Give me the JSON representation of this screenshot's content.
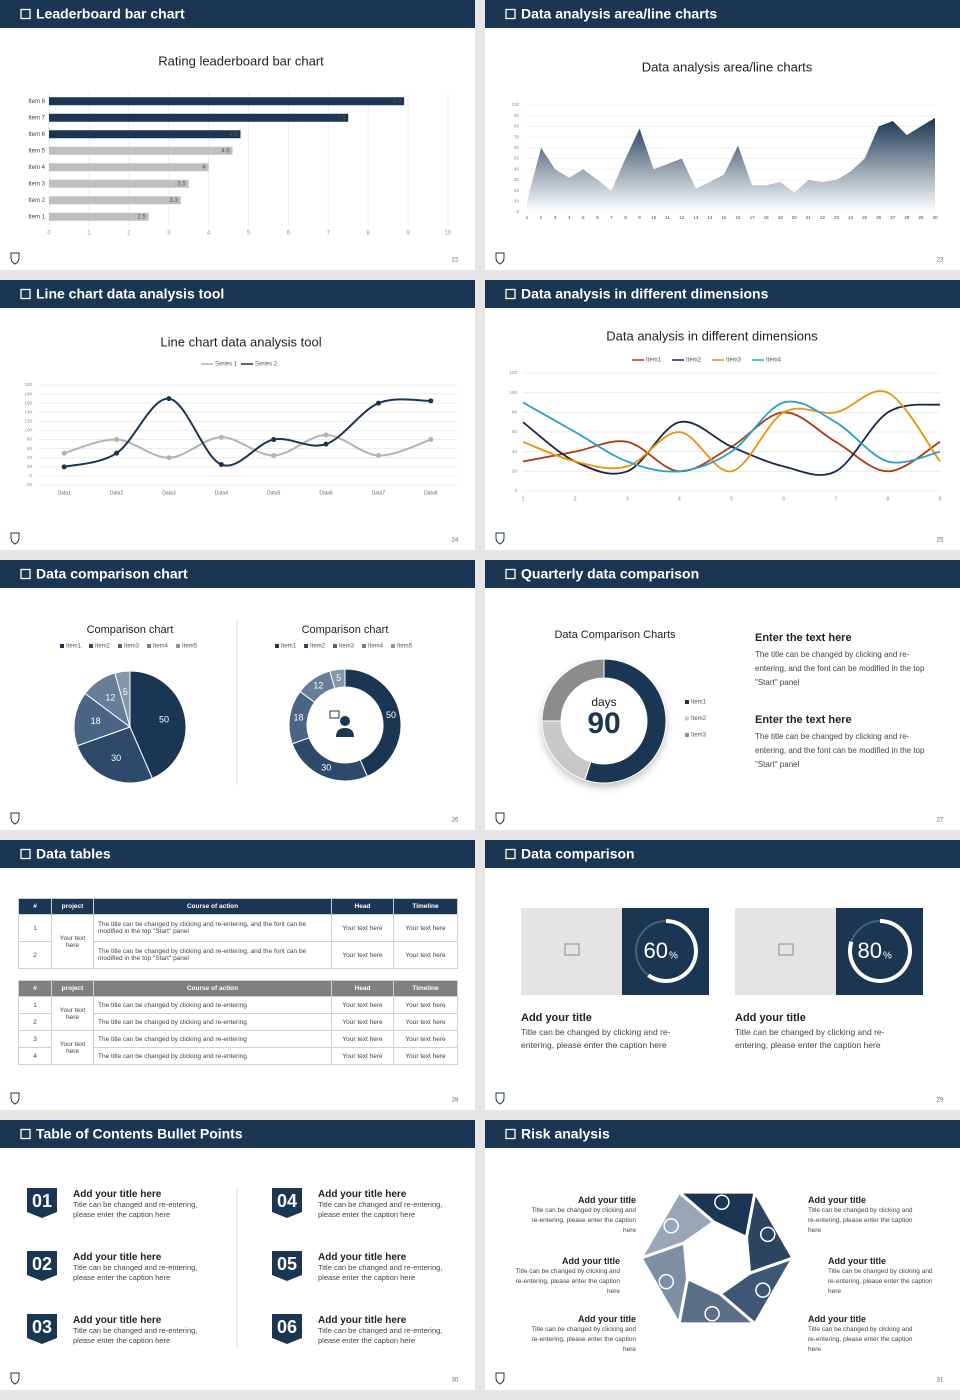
{
  "slides": [
    {
      "title": "Leaderboard bar chart",
      "page": 22
    },
    {
      "title": "Data analysis area/line charts",
      "page": 23
    },
    {
      "title": "Line chart data analysis tool",
      "page": 24
    },
    {
      "title": "Data analysis in different dimensions",
      "page": 25
    },
    {
      "title": "Data comparison chart",
      "page": 26
    },
    {
      "title": "Quarterly data comparison",
      "page": 27
    },
    {
      "title": "Data tables",
      "page": 28
    },
    {
      "title": "Data comparison",
      "page": 29
    },
    {
      "title": "Table of Contents Bullet Points",
      "page": 30
    },
    {
      "title": "Risk analysis",
      "page": 31
    }
  ],
  "chart_data": [
    {
      "type": "bar",
      "orientation": "horizontal",
      "title": "Rating leaderboard bar chart",
      "categories": [
        "Item 1",
        "Item 2",
        "Item 3",
        "Item 4",
        "Item 5",
        "Item 6",
        "Item 7",
        "Item 8"
      ],
      "values": [
        2.5,
        3.3,
        3.5,
        4,
        4.6,
        4.8,
        7.5,
        8.9
      ],
      "colors": [
        "#bfbfbf",
        "#bfbfbf",
        "#bfbfbf",
        "#bfbfbf",
        "#bfbfbf",
        "#1b3652",
        "#1b3652",
        "#1b3652"
      ],
      "xlim": [
        0,
        10
      ],
      "xticks": [
        0,
        1,
        2,
        3,
        4,
        5,
        6,
        7,
        8,
        9,
        10
      ],
      "grid": true
    },
    {
      "type": "area",
      "title": "Data analysis area/line charts",
      "x": [
        1,
        2,
        3,
        4,
        5,
        6,
        7,
        8,
        9,
        10,
        11,
        12,
        13,
        14,
        15,
        16,
        17,
        18,
        19,
        20,
        21,
        22,
        23,
        24,
        25,
        26,
        27,
        28,
        29,
        30
      ],
      "values": [
        10,
        60,
        40,
        32,
        40,
        30,
        20,
        50,
        78,
        40,
        45,
        50,
        22,
        28,
        35,
        62,
        25,
        25,
        28,
        18,
        30,
        28,
        30,
        38,
        50,
        80,
        85,
        72,
        80,
        88
      ],
      "color": "#1b3652",
      "xlim": [
        1,
        30
      ],
      "ylim": [
        0,
        100
      ],
      "yticks": [
        0,
        10,
        20,
        30,
        40,
        50,
        60,
        70,
        80,
        90,
        100
      ],
      "grid": true
    },
    {
      "type": "line",
      "title": "Line chart data analysis tool",
      "smooth": true,
      "categories": [
        "Data1",
        "Data2",
        "Data3",
        "Data4",
        "Data5",
        "Data6",
        "Data7",
        "Data8"
      ],
      "series": [
        {
          "name": "Series 1",
          "color": "#b3b3b3",
          "values": [
            50,
            80,
            40,
            85,
            45,
            90,
            45,
            80
          ]
        },
        {
          "name": "Series 2",
          "color": "#1b3652",
          "values": [
            20,
            50,
            170,
            25,
            80,
            70,
            160,
            165
          ]
        }
      ],
      "ylim": [
        -20,
        200
      ],
      "yticks": [
        -20,
        0,
        20,
        40,
        60,
        80,
        100,
        120,
        140,
        160,
        180,
        200
      ],
      "grid": true
    },
    {
      "type": "line",
      "title": "Data analysis in different dimensions",
      "smooth": true,
      "x": [
        1,
        2,
        3,
        4,
        5,
        6,
        7,
        8,
        9
      ],
      "series": [
        {
          "name": "Item1",
          "color": "#b03a12",
          "values": [
            30,
            40,
            50,
            20,
            45,
            80,
            50,
            20,
            50
          ]
        },
        {
          "name": "Item2",
          "color": "#16294a",
          "values": [
            70,
            30,
            20,
            70,
            45,
            25,
            20,
            80,
            88
          ]
        },
        {
          "name": "Item3",
          "color": "#e8940e",
          "values": [
            50,
            30,
            25,
            60,
            20,
            80,
            80,
            100,
            30
          ]
        },
        {
          "name": "Item4",
          "color": "#2aa0c8",
          "values": [
            90,
            60,
            30,
            20,
            40,
            90,
            70,
            30,
            40
          ]
        }
      ],
      "xlim": [
        1,
        9
      ],
      "xticks": [
        1,
        2,
        3,
        4,
        5,
        6,
        7,
        8,
        9
      ],
      "ylim": [
        0,
        120
      ],
      "yticks": [
        0,
        20,
        40,
        60,
        80,
        100,
        120
      ],
      "grid": true
    },
    {
      "type": "pie",
      "title": "Comparison chart",
      "categories": [
        "Item1",
        "Item2",
        "Item3",
        "Item4",
        "Item5"
      ],
      "values": [
        50,
        30,
        18,
        12,
        5
      ],
      "colors": [
        "#1b3652",
        "#2e4a6b",
        "#4a6483",
        "#667e98",
        "#8597aa"
      ]
    },
    {
      "type": "donut",
      "title": "Comparison chart",
      "categories": [
        "Item1",
        "Item2",
        "Item3",
        "Item4",
        "Item5"
      ],
      "values": [
        50,
        30,
        18,
        12,
        5
      ],
      "colors": [
        "#1b3652",
        "#2e4a6b",
        "#4a6483",
        "#667e98",
        "#8597aa"
      ]
    },
    {
      "type": "donut",
      "title": "Data Comparison Charts",
      "center_label": "days",
      "center_value": 90,
      "categories": [
        "Item1",
        "Item2",
        "Item3"
      ],
      "values": [
        55,
        20,
        25
      ],
      "colors": [
        "#1b3652",
        "#c8c8c8",
        "#8c8c8c"
      ]
    }
  ],
  "quarterly": {
    "blocks": [
      {
        "heading": "Enter the text here",
        "body": "The title can be changed by clicking and re-entering, and the font can be modified in the top \"Start\" panel"
      },
      {
        "heading": "Enter the text here",
        "body": "The title can be changed by clicking and re-entering, and the font can be modified in the top \"Start\" panel"
      }
    ]
  },
  "tables": [
    {
      "header": [
        "#",
        "project",
        "Course of action",
        "Head",
        "Timeline"
      ],
      "groups": [
        {
          "project": "Your text here",
          "rows": [
            [
              "1",
              "The title can be changed by clicking and re-entering, and the font can be modified in the top \"Start\" panel",
              "Your text here",
              "Your text here"
            ],
            [
              "2",
              "The title can be changed by clicking and re-entering, and the font can be modified in the top \"Start\" panel",
              "Your text here",
              "Your text here"
            ]
          ]
        }
      ]
    },
    {
      "header": [
        "#",
        "project",
        "Course of action",
        "Head",
        "Timeline"
      ],
      "groups": [
        {
          "project": "Your text here",
          "rows": [
            [
              "1",
              "The title can be changed by clicking and re-entering",
              "Your text here",
              "Your text here"
            ],
            [
              "2",
              "The title can be changed by clicking and re-entering",
              "Your text here",
              "Your text here"
            ]
          ]
        },
        {
          "project": "Your text here",
          "rows": [
            [
              "3",
              "The title can be changed by clicking and re-entering",
              "Your text here",
              "Your text here"
            ],
            [
              "4",
              "The title can be changed by clicking and re-entering",
              "Your text here",
              "Your text here"
            ]
          ]
        }
      ]
    }
  ],
  "comparison": {
    "cards": [
      {
        "value": 60,
        "unit": "%",
        "title": "Add your title",
        "body": "Title can be changed by clicking and re-entering, please enter the caption here"
      },
      {
        "value": 80,
        "unit": "%",
        "title": "Add your title",
        "body": "Title can be changed by clicking and re-entering, please enter the caption here"
      }
    ]
  },
  "contents": [
    {
      "number": "01",
      "title": "Add your title here",
      "body": "Title can be changed and re-entering, please enter the caption here"
    },
    {
      "number": "02",
      "title": "Add your title here",
      "body": "Title can be changed and re-entering, please enter the caption here"
    },
    {
      "number": "03",
      "title": "Add your title here",
      "body": "Title can be changed and re-entering, please enter the caption here"
    },
    {
      "number": "04",
      "title": "Add your title here",
      "body": "Title can be changed and re-entering, please enter the caption here"
    },
    {
      "number": "05",
      "title": "Add your title here",
      "body": "Title can be changed and re-entering, please enter the caption here"
    },
    {
      "number": "06",
      "title": "Add your title here",
      "body": "Title can be changed and re-entering, please enter the caption here"
    }
  ],
  "risk": [
    {
      "title": "Add your title",
      "body": "Title can be changed by clicking and re-entering, please enter the caption here"
    },
    {
      "title": "Add your title",
      "body": "Title can be changed by clicking and re-entering, please enter the caption here"
    },
    {
      "title": "Add your title",
      "body": "Title can be changed by clicking and re-entering, please enter the caption here"
    },
    {
      "title": "Add your title",
      "body": "Title can be changed by clicking and re-entering, please enter the caption here"
    },
    {
      "title": "Add your title",
      "body": "Title can be changed by clicking and re-entering, please enter the caption here"
    },
    {
      "title": "Add your title",
      "body": "Title can be changed by clicking and re-entering, please enter the caption here"
    }
  ]
}
